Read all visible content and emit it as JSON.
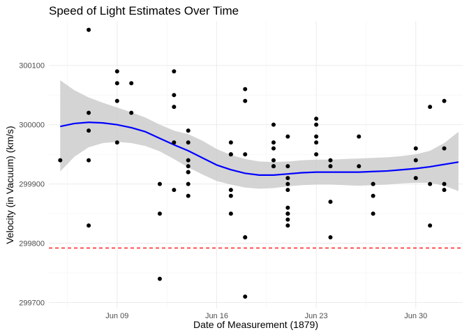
{
  "chart_data": {
    "type": "scatter",
    "title": "Speed of Light Estimates Over Time",
    "xlabel": "Date of Measurement (1879)",
    "ylabel": "Velocity (in Vacuum) (km/s)",
    "x_ticks": [
      {
        "day": 9,
        "label": "Jun 09"
      },
      {
        "day": 16,
        "label": "Jun 16"
      },
      {
        "day": 23,
        "label": "Jun 23"
      },
      {
        "day": 30,
        "label": "Jun 30"
      }
    ],
    "y_ticks": [
      299700,
      299800,
      299900,
      300000,
      300100
    ],
    "xlim": [
      4.2,
      33.3
    ],
    "ylim": [
      299690,
      300175
    ],
    "reference_line": {
      "value": 299792,
      "color": "#ff0000",
      "style": "dashed"
    },
    "smooth": {
      "color": "#0000ff",
      "band_color": "#cccccc",
      "x": [
        5,
        6,
        7,
        8,
        9,
        10,
        11,
        12,
        13,
        14,
        15,
        16,
        17,
        18,
        19,
        20,
        21,
        22,
        23,
        24,
        25,
        26,
        27,
        28,
        29,
        30,
        31,
        32,
        33
      ],
      "y": [
        299997,
        300002,
        300004,
        300003,
        300000,
        299995,
        299988,
        299977,
        299966,
        299956,
        299944,
        299932,
        299924,
        299918,
        299915,
        299915,
        299917,
        299919,
        299920,
        299920,
        299920,
        299920,
        299921,
        299922,
        299924,
        299926,
        299929,
        299933,
        299937
      ],
      "lower": [
        299921,
        299946,
        299962,
        299969,
        299971,
        299969,
        299964,
        299955,
        299942,
        299928,
        299916,
        299905,
        299899,
        299894,
        299892,
        299893,
        299896,
        299898,
        299899,
        299899,
        299898,
        299897,
        299898,
        299899,
        299901,
        299902,
        299902,
        299897,
        299888
      ],
      "upper": [
        300075,
        300058,
        300046,
        300037,
        300029,
        300021,
        300012,
        300000,
        299990,
        299984,
        299973,
        299959,
        299949,
        299942,
        299938,
        299937,
        299938,
        299940,
        299941,
        299941,
        299942,
        299943,
        299944,
        299945,
        299947,
        299950,
        299956,
        299969,
        299988
      ]
    },
    "points": {
      "color": "#000000",
      "x": [
        5,
        7,
        7,
        7,
        7,
        7,
        9,
        9,
        9,
        9,
        10,
        10,
        12,
        12,
        12,
        13,
        13,
        13,
        13,
        13,
        14,
        14,
        14,
        14,
        14,
        14,
        14,
        14,
        17,
        17,
        17,
        17,
        17,
        17,
        18,
        18,
        18,
        18,
        18,
        18,
        20,
        20,
        20,
        20,
        20,
        20,
        21,
        21,
        21,
        21,
        21,
        21,
        21,
        21,
        21,
        21,
        23,
        23,
        23,
        23,
        23,
        24,
        24,
        24,
        24,
        26,
        26,
        27,
        27,
        27,
        27,
        30,
        30,
        30,
        31,
        31,
        31,
        32,
        32,
        32,
        32
      ],
      "y": [
        299940,
        300160,
        300020,
        299990,
        299940,
        299830,
        300090,
        300070,
        300040,
        299970,
        300070,
        300020,
        299900,
        299850,
        299740,
        300090,
        300050,
        300030,
        299970,
        299890,
        299990,
        299970,
        299940,
        299930,
        299920,
        299920,
        299900,
        299880,
        299970,
        299950,
        299890,
        299880,
        299850,
        299950,
        300060,
        300040,
        299950,
        299810,
        299810,
        299710,
        300000,
        299970,
        299960,
        299940,
        299930,
        299930,
        299980,
        299910,
        299900,
        299890,
        299860,
        299850,
        299850,
        299840,
        299830,
        299930,
        300010,
        300000,
        299980,
        299970,
        299950,
        299940,
        299930,
        299870,
        299810,
        299980,
        299930,
        299900,
        299880,
        299850,
        299900,
        299960,
        299940,
        299910,
        300030,
        299900,
        299830,
        300040,
        299960,
        299900,
        299890
      ]
    }
  }
}
